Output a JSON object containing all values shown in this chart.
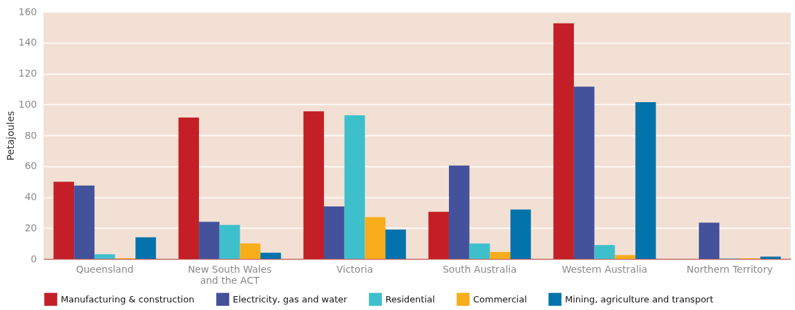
{
  "chart_data": {
    "type": "bar",
    "ylabel": "Petajoules",
    "categories": [
      "Queensland",
      "New South Wales\nand the ACT",
      "Victoria",
      "South Australia",
      "Western Australia",
      "Northern Territory"
    ],
    "series": [
      {
        "name": "Manufacturing & construction",
        "color": "#c41f26",
        "values": [
          50,
          91.5,
          95.5,
          30.5,
          152.5,
          0
        ]
      },
      {
        "name": "Electricity, gas and water",
        "color": "#43529b",
        "values": [
          47.5,
          24,
          34,
          60.5,
          111.5,
          23.5
        ]
      },
      {
        "name": "Residential",
        "color": "#3ec0cc",
        "values": [
          3,
          22,
          93,
          10,
          9,
          0.3
        ]
      },
      {
        "name": "Commercial",
        "color": "#f7ae1a",
        "values": [
          0.5,
          10,
          27,
          4.5,
          2.5,
          0.3
        ]
      },
      {
        "name": "Mining, agriculture and transport",
        "color": "#0573ab",
        "values": [
          14,
          4,
          19,
          32,
          101.5,
          1.5
        ]
      }
    ],
    "ylim": [
      0,
      160
    ],
    "yticks": [
      0,
      20,
      40,
      60,
      80,
      100,
      120,
      140,
      160
    ],
    "grid": "y",
    "legend": "bottom"
  }
}
